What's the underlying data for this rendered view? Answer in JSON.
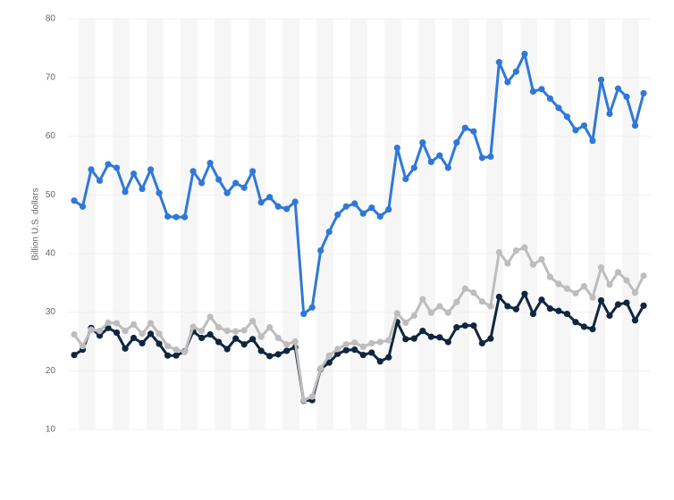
{
  "chart_data": {
    "type": "line",
    "y_label": "Billion U.S. dollars",
    "categories": [
      null,
      null,
      null,
      null,
      null,
      null,
      null,
      null,
      null,
      null,
      null,
      null,
      null,
      null,
      null,
      null,
      null,
      null,
      null,
      null,
      null,
      null,
      null,
      null,
      null,
      null,
      null,
      null,
      null,
      null,
      null,
      null,
      null,
      null,
      null,
      null,
      null,
      null,
      null,
      null,
      null,
      null,
      null,
      null,
      null,
      null,
      null,
      null,
      null,
      null,
      null,
      null,
      null,
      null,
      null,
      null,
      null,
      null,
      null,
      null,
      null,
      null,
      null,
      null,
      null,
      null,
      null,
      null
    ],
    "series": [
      {
        "color": "#2f78d9",
        "values": [
          49,
          48,
          54.3,
          52.4,
          55.2,
          54.6,
          50.5,
          53.6,
          51,
          54.3,
          50.3,
          46.3,
          46.2,
          46.2,
          54,
          52,
          55.4,
          52.6,
          50.3,
          52,
          51.2,
          54,
          48.7,
          49.6,
          48,
          47.6,
          48.8,
          29.7,
          30.8,
          40.5,
          43.7,
          46.6,
          48,
          48.5,
          46.8,
          47.8,
          46.3,
          47.5,
          58,
          52.7,
          54.6,
          58.9,
          55.6,
          56.7,
          54.6,
          58.9,
          61.4,
          60.8,
          56.3,
          56.5,
          72.6,
          69.2,
          71,
          74,
          67.6,
          68,
          66.4,
          64.8,
          63.3,
          61,
          61.8,
          59.2,
          69.6,
          63.8,
          68.1,
          66.7,
          61.8,
          67.3
        ]
      },
      {
        "color": "#bdbdbd",
        "values": [
          26.2,
          24.2,
          27,
          26.8,
          28.2,
          28.1,
          26.8,
          27.9,
          26.3,
          28.1,
          26.3,
          24.2,
          23.6,
          23.2,
          27.5,
          26.8,
          29.2,
          27.4,
          26.8,
          26.7,
          26.9,
          28.5,
          25.8,
          27.4,
          25.6,
          24.5,
          25,
          15,
          15.6,
          20.4,
          22.6,
          23.7,
          24.5,
          24.8,
          24.1,
          24.7,
          24.9,
          25.2,
          29.8,
          28.2,
          29.4,
          32.2,
          29.9,
          31,
          29.9,
          31.7,
          34,
          33.3,
          31.8,
          31,
          40.2,
          38.3,
          40.5,
          41,
          38.1,
          39,
          36,
          34.8,
          34,
          33.2,
          34.4,
          32.5,
          37.6,
          34.7,
          36.8,
          35.4,
          33.3,
          36.2
        ]
      },
      {
        "color": "#10263f",
        "values": [
          22.7,
          23.6,
          27.3,
          26,
          27.3,
          26.5,
          23.8,
          25.6,
          24.7,
          26.3,
          24.6,
          22.6,
          22.6,
          23.3,
          26.7,
          25.6,
          26.2,
          24.9,
          23.7,
          25.5,
          24.5,
          25.4,
          23.4,
          22.5,
          22.8,
          23.4,
          24,
          14.9,
          15,
          20.3,
          21.4,
          22.9,
          23.5,
          23.6,
          22.7,
          23.1,
          21.6,
          22.3,
          28.3,
          25.4,
          25.5,
          26.8,
          25.8,
          25.7,
          24.9,
          27.4,
          27.7,
          27.7,
          24.7,
          25.5,
          32.6,
          31,
          30.5,
          33.1,
          29.7,
          32.1,
          30.6,
          30.2,
          29.7,
          28.3,
          27.5,
          27.1,
          32,
          29.4,
          31.3,
          31.6,
          28.6,
          31.1
        ]
      }
    ],
    "ylim": [
      10,
      80
    ],
    "yticks": [
      10,
      20,
      30,
      40,
      50,
      60,
      70,
      80
    ],
    "grid": true
  }
}
